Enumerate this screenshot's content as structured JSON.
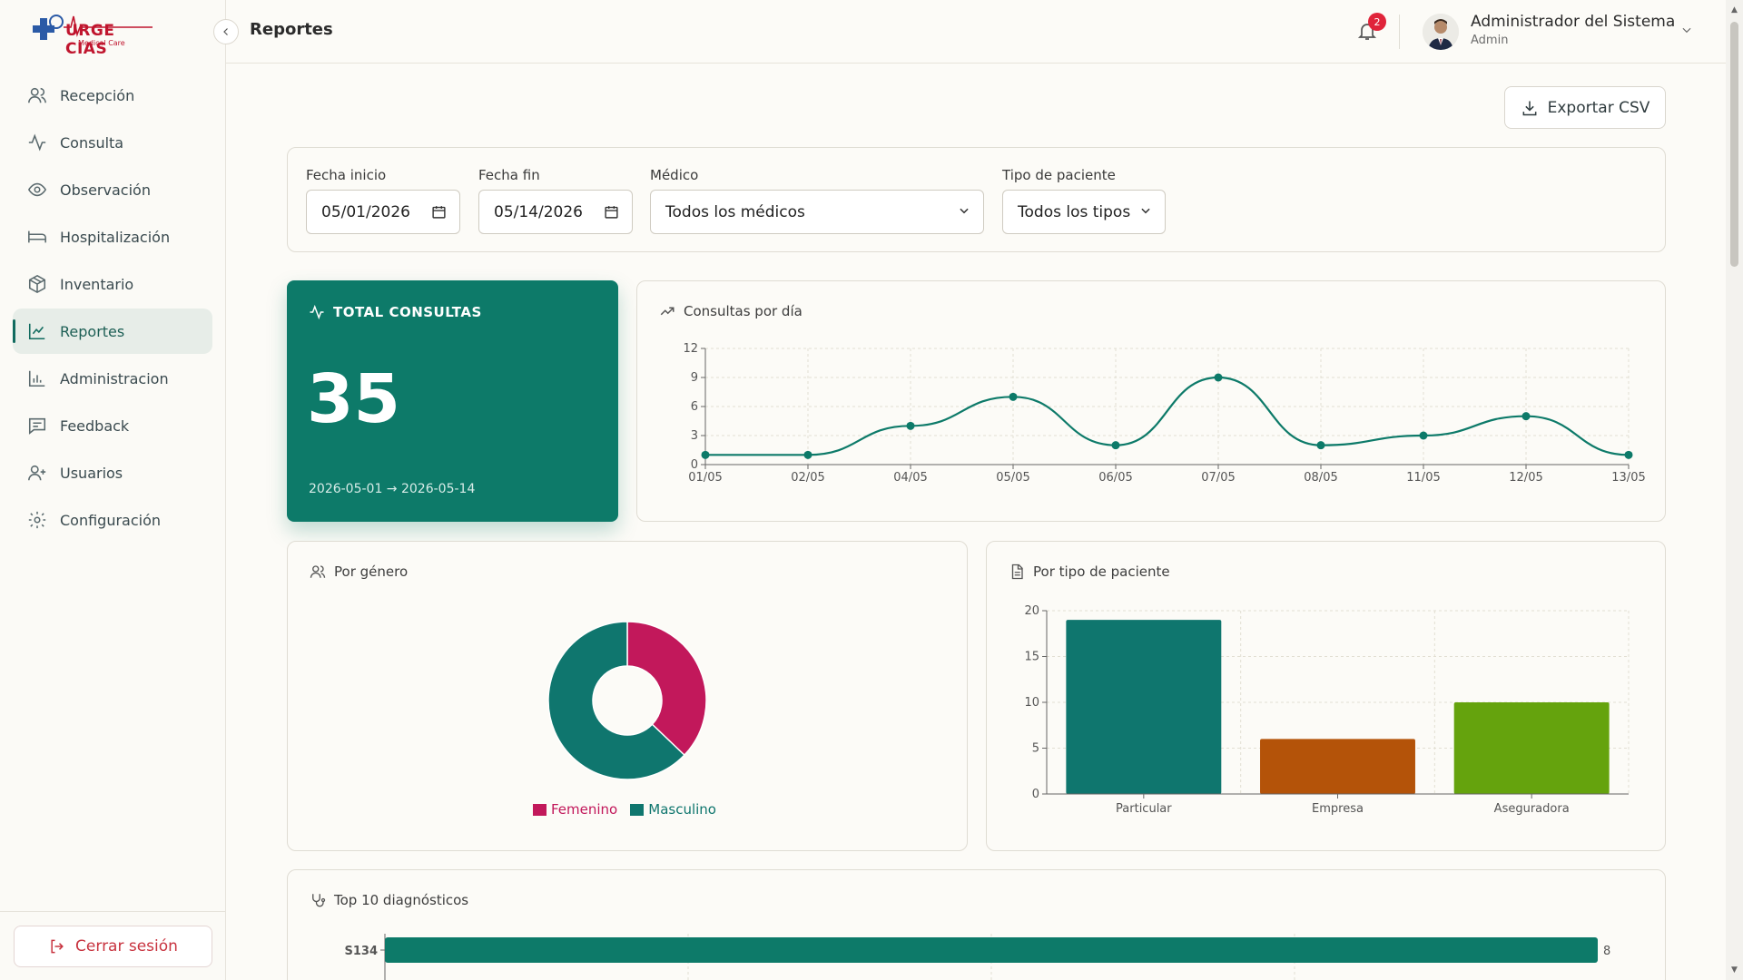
{
  "app": {
    "logo_text": "URGE CIAS",
    "logo_sub": "Medical Care",
    "page_title": "Reportes"
  },
  "sidebar": {
    "items": [
      {
        "label": "Recepción",
        "icon": "users-icon"
      },
      {
        "label": "Consulta",
        "icon": "activity-icon"
      },
      {
        "label": "Observación",
        "icon": "eye-icon"
      },
      {
        "label": "Hospitalización",
        "icon": "bed-icon"
      },
      {
        "label": "Inventario",
        "icon": "package-icon"
      },
      {
        "label": "Reportes",
        "icon": "line-chart-icon",
        "active": true
      },
      {
        "label": "Administracion",
        "icon": "bar-chart-icon"
      },
      {
        "label": "Feedback",
        "icon": "message-icon"
      },
      {
        "label": "Usuarios",
        "icon": "user-plus-icon"
      },
      {
        "label": "Configuración",
        "icon": "gear-icon"
      }
    ],
    "logout_label": "Cerrar sesión"
  },
  "header": {
    "notifications_count": "2",
    "user_name": "Administrador del Sistema",
    "user_role": "Admin"
  },
  "actions": {
    "export_label": "Exportar CSV"
  },
  "filters": {
    "start_label": "Fecha inicio",
    "start_value": "05/01/2026",
    "end_label": "Fecha fin",
    "end_value": "05/14/2026",
    "doctor_label": "Médico",
    "doctor_value": "Todos los médicos",
    "type_label": "Tipo de paciente",
    "type_value": "Todos los tipos"
  },
  "kpi": {
    "label": "TOTAL CONSULTAS",
    "value": "35",
    "range": "2026-05-01 → 2026-05-14"
  },
  "colors": {
    "primary": "#0d7a69",
    "femenino": "#c2185b",
    "masculino": "#0f766e",
    "particular": "#0f766e",
    "empresa": "#b45309",
    "aseguradora": "#65a30d",
    "logout": "#c8333f"
  },
  "chart_data": [
    {
      "type": "line",
      "title": "Consultas por día",
      "x": [
        "01/05",
        "02/05",
        "04/05",
        "05/05",
        "06/05",
        "07/05",
        "08/05",
        "11/05",
        "12/05",
        "13/05"
      ],
      "values": [
        1,
        1,
        4,
        7,
        2,
        9,
        2,
        3,
        5,
        1
      ],
      "ylim": [
        0,
        12
      ],
      "yticks": [
        0,
        3,
        6,
        9,
        12
      ],
      "grid": true
    },
    {
      "type": "pie",
      "title": "Por género",
      "donut": true,
      "labels": [
        "Femenino",
        "Masculino"
      ],
      "values": [
        13,
        22
      ],
      "legend": "bottom"
    },
    {
      "type": "bar",
      "title": "Por tipo de paciente",
      "categories": [
        "Particular",
        "Empresa",
        "Aseguradora"
      ],
      "values": [
        19,
        6,
        10
      ],
      "ylim": [
        0,
        20
      ],
      "yticks": [
        0,
        5,
        10,
        15,
        20
      ],
      "grid": true
    },
    {
      "type": "bar",
      "orientation": "horizontal",
      "title": "Top 10 diagnósticos",
      "categories": [
        "S134"
      ],
      "values": [
        8
      ],
      "data_labels": [
        "8"
      ]
    }
  ]
}
